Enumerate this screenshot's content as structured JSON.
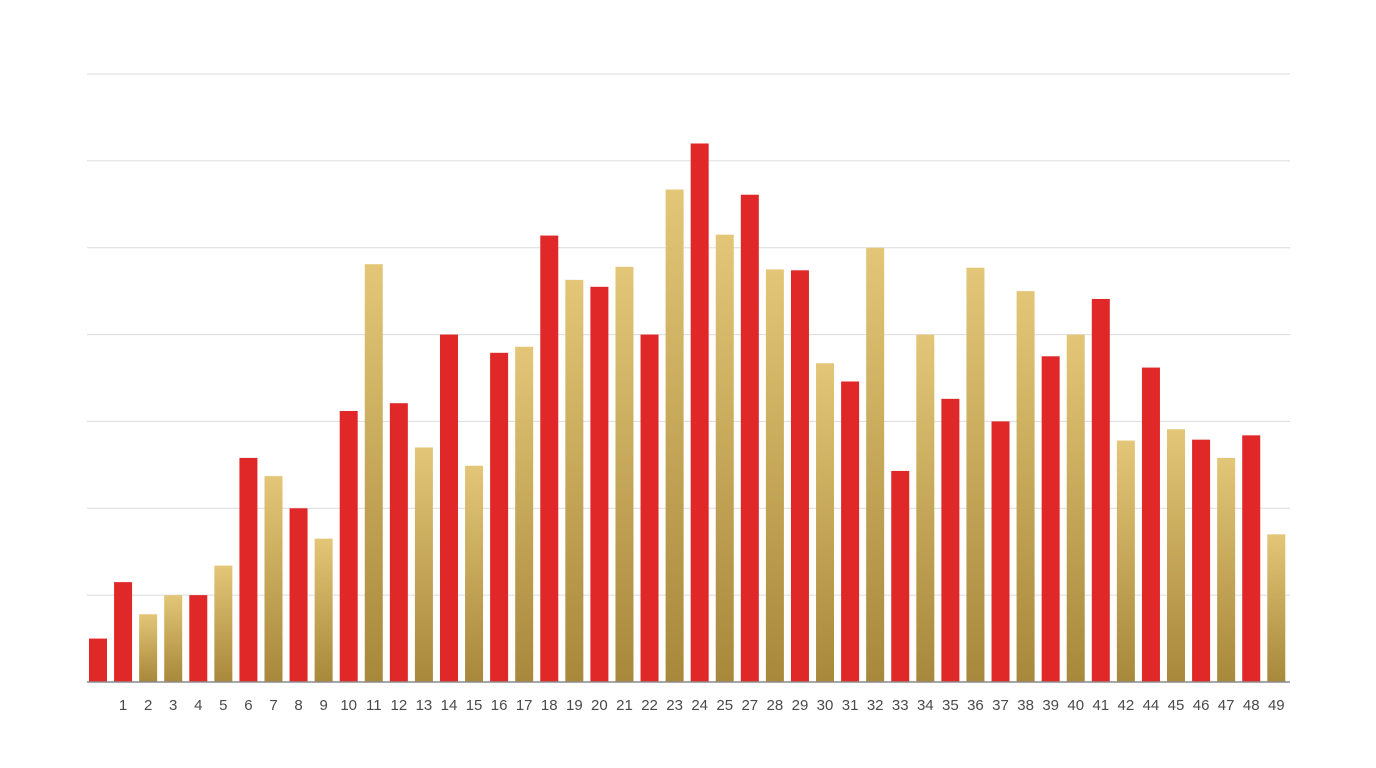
{
  "chart_data": {
    "type": "bar",
    "title": "",
    "xlabel": "",
    "ylabel": "",
    "grid": true,
    "legend": "none",
    "ylim": [
      0,
      70
    ],
    "categories": [
      "",
      "1",
      "2",
      "3",
      "4",
      "5",
      "6",
      "7",
      "8",
      "9",
      "10",
      "11",
      "12",
      "13",
      "14",
      "15",
      "16",
      "17",
      "18",
      "19",
      "20",
      "21",
      "22",
      "23",
      "24",
      "25",
      "27",
      "28",
      "29",
      "30",
      "31",
      "32",
      "33",
      "34",
      "35",
      "36",
      "37",
      "38",
      "39",
      "40",
      "41",
      "42",
      "44",
      "45",
      "46",
      "47",
      "48",
      "49"
    ],
    "values": [
      5,
      11.5,
      7.8,
      10,
      10,
      13.4,
      25.8,
      23.7,
      20,
      16.5,
      31.2,
      48.1,
      32.1,
      27,
      40,
      24.9,
      37.9,
      38.6,
      51.4,
      46.3,
      45.5,
      47.8,
      40,
      56.7,
      62,
      51.5,
      56.1,
      47.5,
      47.4,
      36.7,
      34.6,
      50,
      24.3,
      40,
      32.6,
      47.7,
      30,
      45,
      37.5,
      40,
      44.1,
      27.8,
      36.2,
      29.1,
      27.9,
      25.8,
      28.4,
      17
    ],
    "colors": [
      "red",
      "red",
      "gold",
      "gold",
      "red",
      "gold",
      "red",
      "gold",
      "red",
      "gold",
      "red",
      "gold",
      "red",
      "gold",
      "red",
      "gold",
      "red",
      "gold",
      "red",
      "gold",
      "red",
      "gold",
      "red",
      "gold",
      "red",
      "gold",
      "red",
      "gold",
      "red",
      "gold",
      "red",
      "gold",
      "red",
      "gold",
      "red",
      "gold",
      "red",
      "gold",
      "red",
      "gold",
      "red",
      "gold",
      "red",
      "gold",
      "red",
      "gold",
      "red",
      "gold"
    ],
    "palette": {
      "red": "#e02828",
      "gold_top": "#e3c677",
      "gold_bottom": "#a8883a",
      "grid": "#dcdcdc",
      "axis": "#8a8a8a",
      "tick": "#4a4a4a"
    }
  }
}
